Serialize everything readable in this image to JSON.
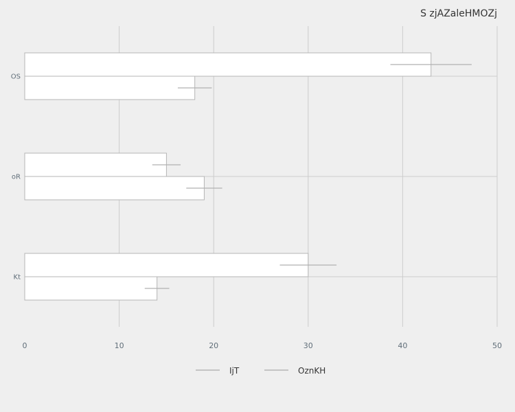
{
  "chart_data": {
    "type": "bar",
    "orientation": "horizontal",
    "title": "S zjAZaleHMOZj",
    "categories": [
      "OS",
      "oR",
      "Kt"
    ],
    "series": [
      {
        "name": "IjT",
        "values": [
          43,
          15,
          30
        ],
        "errors": [
          4.3,
          1.5,
          3.0
        ]
      },
      {
        "name": "OznKH",
        "values": [
          18,
          19,
          14
        ],
        "errors": [
          1.8,
          1.9,
          1.3
        ]
      }
    ],
    "xlim": [
      0,
      50
    ],
    "xticks": [
      0,
      10,
      20,
      30,
      40,
      50
    ],
    "grid": true,
    "legend_position": "bottom",
    "colors": {
      "background": "#efefef",
      "bar_fill": "#ffffff",
      "bar_stroke": "#b5b5b5",
      "grid": "#cccccc",
      "error_bar": "#b0b0b0",
      "tick_text": "#5f6d78",
      "legend_line": "#b5b5b5"
    }
  }
}
